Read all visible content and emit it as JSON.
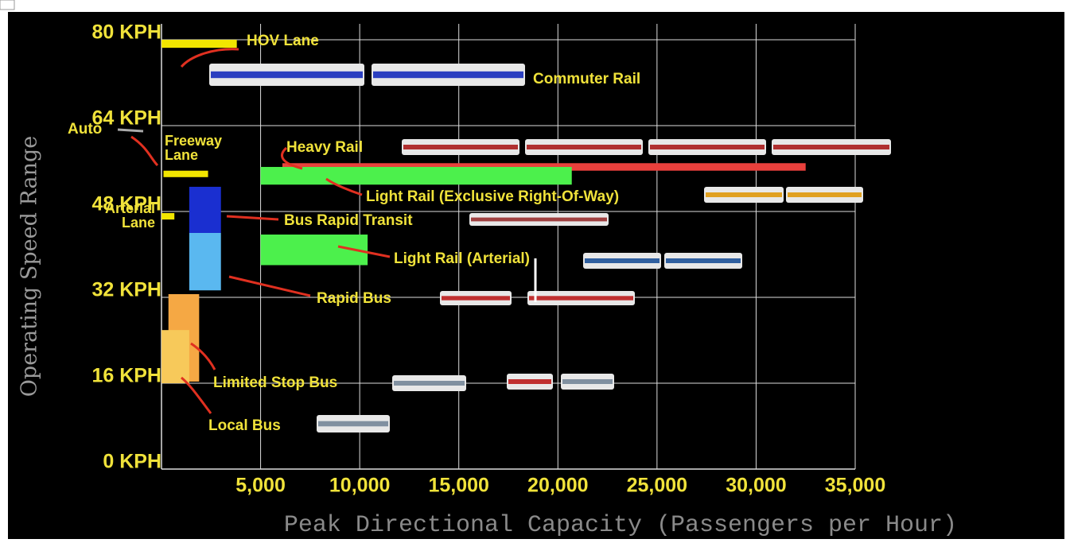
{
  "chart_data": {
    "type": "range",
    "y_label": "Operating Speed Range",
    "x_label": "Peak Directional Capacity (Passengers per Hour)",
    "xlim": [
      0,
      35000
    ],
    "ylim": [
      0,
      80
    ],
    "xticks": [
      {
        "value": 5000,
        "label": "5,000"
      },
      {
        "value": 10000,
        "label": "10,000"
      },
      {
        "value": 15000,
        "label": "15,000"
      },
      {
        "value": 20000,
        "label": "20,000"
      },
      {
        "value": 25000,
        "label": "25,000"
      },
      {
        "value": 30000,
        "label": "30,000"
      },
      {
        "value": 35000,
        "label": "35,000"
      }
    ],
    "yticks": [
      {
        "value": 0,
        "label": "0 KPH"
      },
      {
        "value": 16,
        "label": "16 KPH"
      },
      {
        "value": 32,
        "label": "32 KPH"
      },
      {
        "value": 48,
        "label": "48 KPH"
      },
      {
        "value": 64,
        "label": "64 KPH"
      },
      {
        "value": 80,
        "label": "80 KPH"
      }
    ],
    "grid": true,
    "series": [
      {
        "name": "HOV Lane",
        "color": "#f2e600",
        "x": [
          0,
          3800
        ],
        "y": [
          78.5,
          80
        ]
      },
      {
        "name": "Freeway Lane",
        "color": "#f2e600",
        "x": [
          100,
          2350
        ],
        "y": [
          54.4,
          55.6
        ]
      },
      {
        "name": "Arterial Lane",
        "color": "#f2e600",
        "x": [
          0,
          650
        ],
        "y": [
          46.5,
          47.7
        ]
      },
      {
        "name": "Heavy Rail",
        "color": "#e8403c",
        "x": [
          6100,
          32500
        ],
        "y": [
          55.6,
          57
        ]
      },
      {
        "name": "Light Rail (Exclusive Right-Of-Way)",
        "color": "#4cf04c",
        "x": [
          5000,
          20700
        ],
        "y": [
          53,
          56.3
        ]
      },
      {
        "name": "Bus Rapid Transit",
        "color": "#1a2fd0",
        "x": [
          1400,
          3000
        ],
        "y": [
          44,
          52.6
        ]
      },
      {
        "name": "Rapid Bus",
        "color": "#5ab8f0",
        "x": [
          1400,
          3000
        ],
        "y": [
          33.3,
          44
        ]
      },
      {
        "name": "Light Rail (Arterial)",
        "color": "#4cf04c",
        "x": [
          5000,
          10400
        ],
        "y": [
          38,
          43.7
        ]
      },
      {
        "name": "Limited Stop Bus",
        "color": "#f5a844",
        "x": [
          350,
          1900
        ],
        "y": [
          16.3,
          32.6
        ]
      },
      {
        "name": "Local Bus",
        "color": "#f7c95a",
        "x": [
          0,
          1400
        ],
        "y": [
          16,
          25.9
        ]
      }
    ],
    "annotations": [
      "Auto",
      "Commuter Rail"
    ]
  }
}
